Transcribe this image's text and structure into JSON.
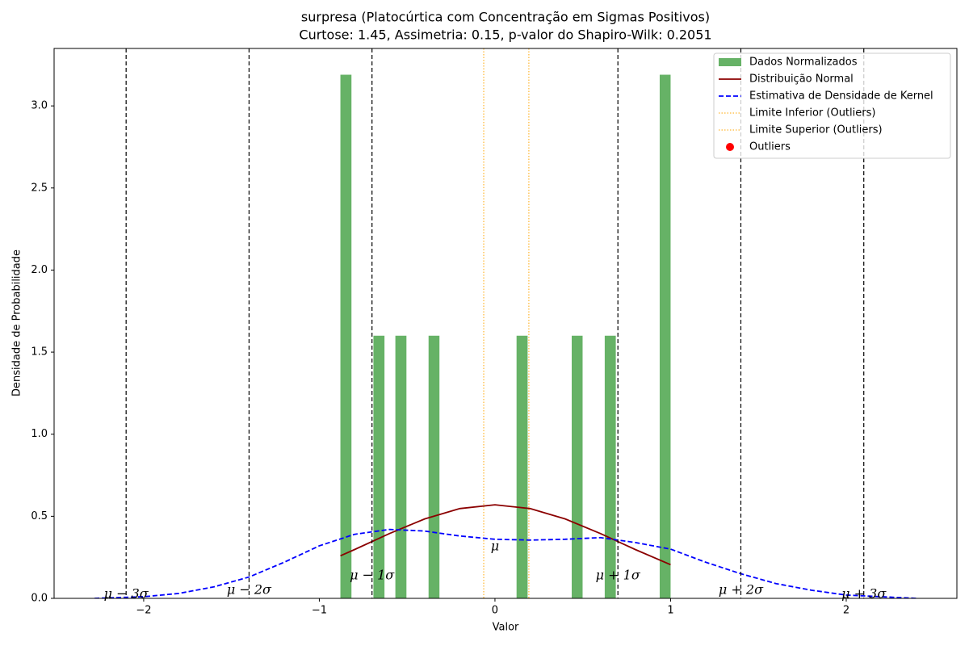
{
  "chart_data": {
    "type": "histogram",
    "title": "surpresa (Platocúrtica com Concentração em Sigmas Positivos)",
    "subtitle": "Curtose: 1.45, Assimetria: 0.15, p-valor do Shapiro-Wilk: 0.2051",
    "xlabel": "Valor",
    "ylabel": "Densidade de Probabilidade",
    "xlim": [
      -2.51,
      2.63
    ],
    "ylim": [
      0,
      3.35
    ],
    "xticks": [
      {
        "value": -2,
        "label": "−2"
      },
      {
        "value": -1,
        "label": "−1"
      },
      0,
      1,
      2
    ],
    "yticks": [
      {
        "value": 0,
        "label": "0.0"
      },
      0.5,
      {
        "value": 1,
        "label": "1.0"
      },
      1.5,
      {
        "value": 2,
        "label": "2.0"
      },
      2.5,
      {
        "value": 3,
        "label": "3.0"
      }
    ],
    "legend": "upper right",
    "series": [
      {
        "name": "Dados Normalizados",
        "type": "histogram",
        "color": "#66b266",
        "bins": [
          -0.88,
          -0.817,
          -0.755,
          -0.692,
          -0.629,
          -0.567,
          -0.504,
          -0.441,
          -0.378,
          -0.316,
          -0.253,
          -0.19,
          -0.128,
          -0.065,
          -0.002,
          0.061,
          0.123,
          0.186,
          0.249,
          0.311,
          0.374,
          0.437,
          0.499,
          0.562,
          0.625,
          0.688,
          0.75,
          0.813,
          0.876,
          0.938,
          1.0
        ],
        "values": [
          3.19,
          0,
          0,
          1.6,
          0,
          1.6,
          0,
          0,
          1.6,
          0,
          0,
          0,
          0,
          0,
          0,
          0,
          1.6,
          0,
          0,
          0,
          0,
          1.6,
          0,
          0,
          1.6,
          0,
          0,
          0,
          0,
          3.19
        ]
      },
      {
        "name": "Distribuição Normal",
        "type": "line",
        "style": "solid",
        "color": "#8b0000",
        "x": [
          -0.88,
          -0.8,
          -0.6,
          -0.4,
          -0.2,
          0,
          0.2,
          0.4,
          0.6,
          0.8,
          1.0
        ],
        "values": [
          0.259,
          0.297,
          0.395,
          0.484,
          0.547,
          0.57,
          0.547,
          0.484,
          0.395,
          0.297,
          0.205
        ]
      },
      {
        "name": "Estimativa de Densidade de Kernel",
        "type": "line",
        "style": "dashed",
        "color": "#0000ff",
        "x": [
          -2.28,
          -2.0,
          -1.8,
          -1.6,
          -1.4,
          -1.2,
          -1.0,
          -0.8,
          -0.6,
          -0.4,
          -0.2,
          0,
          0.2,
          0.4,
          0.6,
          0.8,
          1.0,
          1.2,
          1.4,
          1.6,
          1.8,
          2.0,
          2.2,
          2.4
        ],
        "values": [
          0.0,
          0.01,
          0.03,
          0.07,
          0.13,
          0.22,
          0.32,
          0.39,
          0.42,
          0.41,
          0.38,
          0.36,
          0.355,
          0.36,
          0.37,
          0.34,
          0.3,
          0.22,
          0.15,
          0.09,
          0.05,
          0.02,
          0.01,
          0.0
        ]
      },
      {
        "name": "Limite Inferior (Outliers)",
        "type": "vline",
        "style": "dotted",
        "color": "#ffa500",
        "x": -0.064
      },
      {
        "name": "Limite Superior (Outliers)",
        "type": "vline",
        "style": "dotted",
        "color": "#ffa500",
        "x": 0.193
      },
      {
        "name": "Outliers",
        "type": "scatter",
        "color": "#ff0000",
        "x": [],
        "values": []
      }
    ],
    "sigma_lines": [
      {
        "x": -2.1,
        "label": "μ − 3σ"
      },
      {
        "x": -1.4,
        "label": "μ − 2σ"
      },
      {
        "x": -0.7,
        "label": "μ − 1σ"
      },
      {
        "x": 0.7,
        "label": "μ + 1σ"
      },
      {
        "x": 1.4,
        "label": "μ + 2σ"
      },
      {
        "x": 2.1,
        "label": "μ + 3σ"
      }
    ],
    "mean_label": {
      "x": 0,
      "label": "μ"
    }
  }
}
